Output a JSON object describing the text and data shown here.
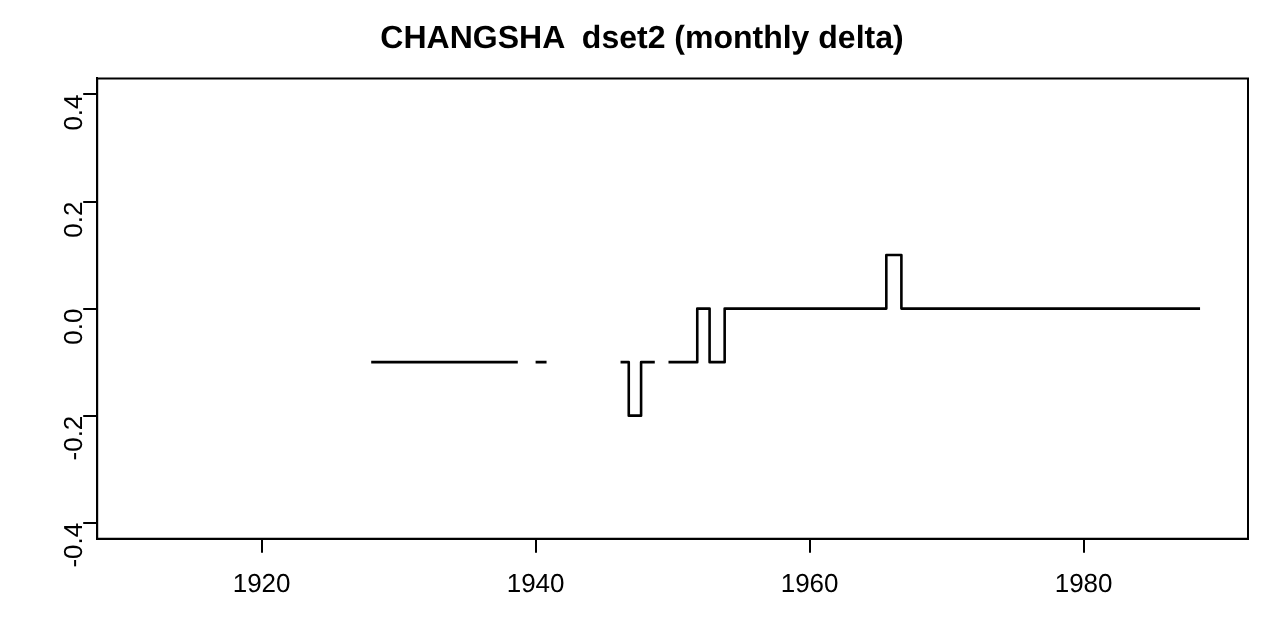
{
  "chart_data": {
    "type": "step",
    "title": "CHANGSHA  dset2 (monthly delta)",
    "x": [
      1928.0,
      1938.7,
      1939.4,
      1940.0,
      1940.8,
      1943.5,
      1946.2,
      1946.8,
      1947.7,
      1948.7,
      1949.2,
      1949.7,
      1951.8,
      1952.7,
      1953.8,
      1965.6,
      1966.7,
      1988.5
    ],
    "series": [
      {
        "color": "#000000",
        "values": [
          -0.1,
          -0.1,
          null,
          -0.1,
          -0.1,
          null,
          -0.1,
          -0.2,
          -0.1,
          -0.1,
          null,
          -0.1,
          0.0,
          -0.1,
          0.0,
          0.1,
          0.0,
          0.0
        ]
      }
    ],
    "xlim": [
      1908,
      1992
    ],
    "xticks": [
      1920,
      1940,
      1960,
      1980
    ],
    "ylim": [
      -0.43,
      0.43
    ],
    "yticks": [
      {
        "value": -0.4,
        "label": "-0.4"
      },
      {
        "value": -0.2,
        "label": "-0.2"
      },
      {
        "value": 0,
        "label": "0.0"
      },
      {
        "value": 0.2,
        "label": "0.2"
      },
      {
        "value": 0.4,
        "label": "0.4"
      }
    ],
    "grid": false,
    "legend": false
  }
}
